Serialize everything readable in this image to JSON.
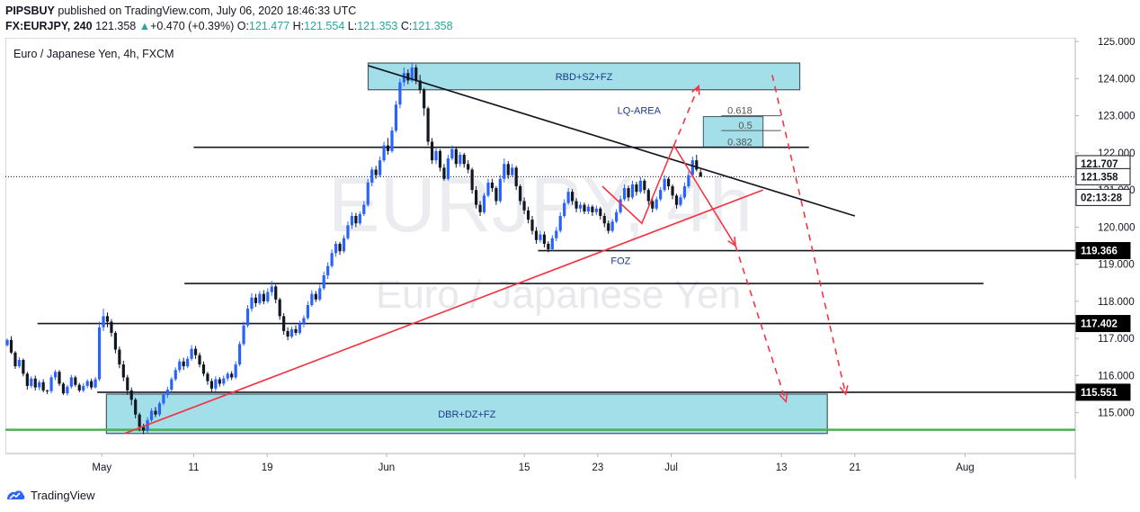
{
  "header": {
    "publisher": "PIPSBUY",
    "published_text": "published on TradingView.com, July 06, 2020 18:46:33 UTC",
    "symbol": "FX:EURJPY, 240",
    "last": "121.358",
    "change": "+0.470 (+0.39%)",
    "o_label": "O:",
    "o": "121.477",
    "h_label": "H:",
    "h": "121.554",
    "l_label": "L:",
    "l": "121.353",
    "c_label": "C:",
    "c": "121.358"
  },
  "footer": {
    "brand": "TradingView"
  },
  "chart_data": {
    "type": "candlestick",
    "title": "Euro / Japanese Yen, 4h, FXCM",
    "watermark_symbol": "EURJPY, 4h",
    "watermark_name": "Euro / Japanese Yen",
    "ylim": [
      113.9,
      125.1
    ],
    "y_ticks": [
      "115.000",
      "116.000",
      "117.000",
      "118.000",
      "119.000",
      "120.000",
      "121.000",
      "122.000",
      "123.000",
      "124.000",
      "125.000"
    ],
    "y_tick_values": [
      115,
      116,
      117,
      118,
      119,
      120,
      121,
      122,
      123,
      124,
      125
    ],
    "x_ticks": [
      {
        "label": "May",
        "x": -1
      },
      {
        "label": "11",
        "x": 9
      },
      {
        "label": "19",
        "x": 17
      },
      {
        "label": "Jun",
        "x": 30
      },
      {
        "label": "15",
        "x": 45
      },
      {
        "label": "23",
        "x": 53
      },
      {
        "label": "Jul",
        "x": 61
      },
      {
        "label": "13",
        "x": 73
      },
      {
        "label": "21",
        "x": 81
      },
      {
        "label": "Aug",
        "x": 93
      }
    ],
    "xlim": [
      -11.5,
      105
    ],
    "price_labels": [
      {
        "text": "121.707",
        "value": 121.707,
        "bg": "#ffffff",
        "fg": "#131722"
      },
      {
        "text": "121.358",
        "value": 121.358,
        "bg": "#ffffff",
        "fg": "#131722"
      },
      {
        "text": "02:13:28",
        "value": 120.8,
        "bg": "#ffffff",
        "fg": "#131722"
      },
      {
        "text": "119.366",
        "value": 119.366,
        "bg": "#000000",
        "fg": "#ffffff"
      },
      {
        "text": "117.402",
        "value": 117.402,
        "bg": "#000000",
        "fg": "#ffffff"
      },
      {
        "text": "115.551",
        "value": 115.551,
        "bg": "#000000",
        "fg": "#ffffff"
      }
    ],
    "current_price": 121.358,
    "zones": [
      {
        "label": "RBD+SZ+FZ",
        "x0": 28,
        "x1": 75,
        "y0": 123.7,
        "y1": 124.42
      },
      {
        "label": "DBR+DZ+FZ",
        "x0": -0.5,
        "x1": 78,
        "y0": 114.44,
        "y1": 115.5
      }
    ],
    "fib_box": {
      "x0": 64.5,
      "x1": 71,
      "y0": 122.15,
      "y1": 123.05,
      "levels": [
        {
          "label": "0.618",
          "value": 123.0
        },
        {
          "label": "0.5",
          "value": 122.6
        },
        {
          "label": "0.382",
          "value": 122.15
        }
      ]
    },
    "text_annotations": [
      {
        "text": "LQ-AREA",
        "x": 57.5,
        "y": 123.05
      },
      {
        "text": "FOZ",
        "x": 55.5,
        "y": 119.0
      }
    ],
    "h_lines": [
      {
        "value": 122.15,
        "x0": 9,
        "x1": 76,
        "color": "#131722"
      },
      {
        "value": 119.366,
        "x0": 46.5,
        "x1": 105,
        "color": "#131722"
      },
      {
        "value": 118.48,
        "x0": 8,
        "x1": 95,
        "color": "#131722"
      },
      {
        "value": 117.402,
        "x0": -8,
        "x1": 105,
        "color": "#131722"
      },
      {
        "value": 115.551,
        "x0": -1.5,
        "x1": 105,
        "color": "#131722"
      },
      {
        "value": 114.54,
        "x0": -11.5,
        "x1": 105,
        "color": "#4caf50"
      }
    ],
    "trend_lines": [
      {
        "x0": 28,
        "y0": 124.35,
        "x1": 81,
        "y1": 120.3,
        "color": "#131722"
      },
      {
        "x0": 1.5,
        "y0": 114.44,
        "x1": 71,
        "y1": 121.0,
        "color": "#f23645"
      }
    ],
    "paths": [
      {
        "points": [
          [
            53.5,
            121.1
          ],
          [
            57.8,
            120.1
          ],
          [
            61.3,
            122.2
          ],
          [
            64,
            121.1
          ],
          [
            68,
            119.5
          ]
        ],
        "dashed": false,
        "arrow": true
      },
      {
        "points": [
          [
            61.3,
            122.2
          ],
          [
            64,
            123.8
          ]
        ],
        "dashed": true,
        "arrow": true
      },
      {
        "points": [
          [
            68,
            119.5
          ],
          [
            73.5,
            115.3
          ]
        ],
        "dashed": true,
        "arrow": true
      },
      {
        "points": [
          [
            72,
            124.1
          ],
          [
            80,
            115.5
          ]
        ],
        "dashed": true,
        "arrow": true
      }
    ],
    "candles": [
      [
        116.82,
        116.96,
        117.0,
        116.78
      ],
      [
        116.96,
        116.62,
        117.06,
        116.58
      ],
      [
        116.62,
        116.25,
        116.66,
        116.18
      ],
      [
        116.25,
        116.42,
        116.5,
        116.2
      ],
      [
        116.42,
        116.05,
        116.46,
        115.98
      ],
      [
        116.05,
        115.72,
        116.1,
        115.62
      ],
      [
        115.72,
        115.92,
        115.98,
        115.66
      ],
      [
        115.92,
        115.68,
        116.0,
        115.6
      ],
      [
        115.68,
        115.82,
        115.88,
        115.6
      ],
      [
        115.82,
        115.6,
        115.9,
        115.55
      ],
      [
        115.6,
        115.58,
        115.62,
        115.5
      ],
      [
        115.58,
        115.95,
        116.02,
        115.52
      ],
      [
        115.95,
        116.1,
        116.15,
        115.88
      ],
      [
        116.1,
        115.78,
        116.15,
        115.72
      ],
      [
        115.78,
        115.52,
        115.82,
        115.48
      ],
      [
        115.52,
        115.7,
        115.75,
        115.46
      ],
      [
        115.7,
        115.95,
        116.02,
        115.65
      ],
      [
        115.95,
        115.75,
        116.0,
        115.7
      ],
      [
        115.75,
        115.6,
        115.8,
        115.55
      ],
      [
        115.6,
        115.72,
        115.8,
        115.55
      ],
      [
        115.72,
        115.85,
        115.9,
        115.66
      ],
      [
        115.85,
        115.68,
        115.92,
        115.62
      ],
      [
        115.68,
        115.9,
        115.96,
        115.65
      ],
      [
        115.9,
        117.3,
        117.45,
        115.85
      ],
      [
        117.3,
        117.6,
        117.8,
        117.2
      ],
      [
        117.6,
        117.45,
        117.7,
        117.3
      ],
      [
        117.45,
        117.15,
        117.52,
        117.05
      ],
      [
        117.15,
        116.7,
        117.2,
        116.6
      ],
      [
        116.7,
        116.3,
        116.78,
        116.2
      ],
      [
        116.3,
        115.95,
        116.4,
        115.85
      ],
      [
        115.95,
        115.6,
        116.02,
        115.48
      ],
      [
        115.6,
        115.35,
        115.68,
        115.2
      ],
      [
        115.35,
        114.95,
        115.4,
        114.85
      ],
      [
        114.95,
        114.62,
        115.0,
        114.5
      ],
      [
        114.62,
        114.52,
        114.7,
        114.42
      ],
      [
        114.52,
        114.8,
        114.88,
        114.46
      ],
      [
        114.8,
        115.05,
        115.12,
        114.75
      ],
      [
        115.05,
        114.95,
        115.15,
        114.88
      ],
      [
        114.95,
        115.25,
        115.3,
        114.9
      ],
      [
        115.25,
        115.48,
        115.55,
        115.2
      ],
      [
        115.48,
        115.62,
        115.7,
        115.4
      ],
      [
        115.62,
        115.9,
        115.96,
        115.55
      ],
      [
        115.9,
        116.15,
        116.22,
        115.85
      ],
      [
        116.15,
        116.38,
        116.45,
        116.08
      ],
      [
        116.38,
        116.25,
        116.48,
        116.15
      ],
      [
        116.25,
        116.45,
        116.52,
        116.2
      ],
      [
        116.45,
        116.72,
        116.82,
        116.4
      ],
      [
        116.72,
        116.55,
        116.8,
        116.45
      ],
      [
        116.55,
        116.3,
        116.62,
        116.22
      ],
      [
        116.3,
        116.05,
        116.38,
        115.98
      ],
      [
        116.05,
        115.85,
        116.1,
        115.75
      ],
      [
        115.85,
        115.65,
        115.92,
        115.55
      ],
      [
        115.65,
        115.9,
        115.98,
        115.58
      ],
      [
        115.9,
        115.78,
        115.96,
        115.7
      ],
      [
        115.78,
        115.92,
        116.0,
        115.72
      ],
      [
        115.92,
        116.05,
        116.1,
        115.85
      ],
      [
        116.05,
        115.95,
        116.12,
        115.88
      ],
      [
        115.95,
        116.3,
        116.38,
        115.9
      ],
      [
        116.3,
        116.85,
        116.92,
        116.25
      ],
      [
        116.85,
        117.35,
        117.45,
        116.8
      ],
      [
        117.35,
        117.8,
        117.9,
        117.3
      ],
      [
        117.8,
        118.1,
        118.22,
        117.72
      ],
      [
        118.1,
        117.95,
        118.2,
        117.85
      ],
      [
        117.95,
        118.2,
        118.28,
        117.9
      ],
      [
        118.2,
        118.0,
        118.3,
        117.92
      ],
      [
        118.0,
        118.25,
        118.35,
        117.95
      ],
      [
        118.25,
        118.4,
        118.55,
        118.15
      ],
      [
        118.4,
        118.05,
        118.45,
        117.95
      ],
      [
        118.05,
        117.6,
        118.1,
        117.5
      ],
      [
        117.6,
        117.2,
        117.68,
        117.1
      ],
      [
        117.2,
        117.05,
        117.3,
        116.95
      ],
      [
        117.05,
        117.25,
        117.32,
        117.0
      ],
      [
        117.25,
        117.15,
        117.35,
        117.08
      ],
      [
        117.15,
        117.4,
        117.48,
        117.1
      ],
      [
        117.4,
        117.55,
        117.62,
        117.3
      ],
      [
        117.55,
        117.9,
        118.0,
        117.5
      ],
      [
        117.9,
        118.2,
        118.3,
        117.85
      ],
      [
        118.2,
        118.05,
        118.28,
        117.98
      ],
      [
        118.05,
        118.35,
        118.45,
        118.0
      ],
      [
        118.35,
        118.7,
        118.8,
        118.3
      ],
      [
        118.7,
        118.95,
        119.05,
        118.6
      ],
      [
        118.95,
        119.3,
        119.4,
        118.9
      ],
      [
        119.3,
        119.55,
        119.62,
        119.2
      ],
      [
        119.55,
        119.35,
        119.6,
        119.25
      ],
      [
        119.35,
        119.7,
        119.78,
        119.3
      ],
      [
        119.7,
        120.05,
        120.15,
        119.65
      ],
      [
        120.05,
        120.3,
        120.4,
        119.95
      ],
      [
        120.3,
        120.1,
        120.38,
        120.0
      ],
      [
        120.1,
        120.35,
        120.42,
        120.05
      ],
      [
        120.35,
        120.6,
        120.7,
        120.3
      ],
      [
        120.6,
        121.2,
        121.3,
        120.55
      ],
      [
        121.2,
        121.55,
        121.62,
        121.1
      ],
      [
        121.55,
        121.4,
        121.65,
        121.3
      ],
      [
        121.4,
        121.8,
        121.9,
        121.35
      ],
      [
        121.8,
        122.2,
        122.3,
        121.75
      ],
      [
        122.2,
        122.05,
        122.4,
        121.95
      ],
      [
        122.05,
        122.6,
        122.7,
        122.0
      ],
      [
        122.6,
        123.3,
        123.4,
        122.55
      ],
      [
        123.3,
        123.9,
        124.0,
        123.2
      ],
      [
        123.9,
        124.15,
        124.3,
        123.8
      ],
      [
        124.15,
        123.95,
        124.25,
        123.85
      ],
      [
        123.95,
        124.3,
        124.43,
        123.9
      ],
      [
        124.3,
        123.95,
        124.38,
        123.85
      ],
      [
        123.95,
        123.7,
        124.1,
        123.6
      ],
      [
        123.7,
        123.2,
        123.75,
        123.0
      ],
      [
        123.2,
        122.3,
        123.25,
        122.2
      ],
      [
        122.3,
        121.8,
        122.4,
        121.7
      ],
      [
        121.8,
        122.05,
        122.12,
        121.7
      ],
      [
        122.05,
        121.6,
        122.1,
        121.5
      ],
      [
        121.6,
        121.3,
        121.7,
        121.25
      ],
      [
        121.3,
        121.85,
        121.95,
        121.25
      ],
      [
        121.85,
        122.1,
        122.2,
        121.8
      ],
      [
        122.1,
        121.7,
        122.15,
        121.6
      ],
      [
        121.7,
        121.95,
        122.02,
        121.62
      ],
      [
        121.95,
        121.7,
        122.0,
        121.6
      ],
      [
        121.7,
        121.55,
        121.8,
        121.45
      ],
      [
        121.55,
        121.0,
        121.6,
        120.9
      ],
      [
        121.0,
        120.6,
        121.1,
        120.5
      ],
      [
        120.6,
        120.4,
        120.7,
        120.3
      ],
      [
        120.4,
        120.85,
        120.92,
        120.35
      ],
      [
        120.85,
        121.2,
        121.3,
        120.8
      ],
      [
        121.2,
        121.05,
        121.3,
        120.95
      ],
      [
        121.05,
        120.7,
        121.1,
        120.6
      ],
      [
        120.7,
        121.3,
        121.4,
        120.65
      ],
      [
        121.3,
        121.7,
        121.85,
        121.2
      ],
      [
        121.7,
        121.4,
        121.78,
        121.3
      ],
      [
        121.4,
        121.6,
        121.7,
        121.35
      ],
      [
        121.6,
        121.1,
        121.65,
        121.0
      ],
      [
        121.1,
        120.7,
        121.15,
        120.6
      ],
      [
        120.7,
        120.45,
        120.8,
        120.35
      ],
      [
        120.45,
        120.2,
        120.55,
        120.1
      ],
      [
        120.2,
        119.9,
        120.3,
        119.8
      ],
      [
        119.9,
        119.65,
        120.0,
        119.55
      ],
      [
        119.65,
        119.8,
        119.9,
        119.58
      ],
      [
        119.8,
        119.55,
        119.88,
        119.45
      ],
      [
        119.55,
        119.4,
        119.62,
        119.32
      ],
      [
        119.4,
        119.7,
        119.78,
        119.35
      ],
      [
        119.7,
        119.9,
        120.0,
        119.62
      ],
      [
        119.9,
        120.3,
        120.4,
        119.85
      ],
      [
        120.3,
        120.65,
        120.75,
        120.25
      ],
      [
        120.65,
        120.95,
        121.05,
        120.6
      ],
      [
        120.95,
        120.7,
        121.02,
        120.6
      ],
      [
        120.7,
        120.5,
        120.78,
        120.4
      ],
      [
        120.5,
        120.6,
        120.68,
        120.4
      ],
      [
        120.6,
        120.42,
        120.66,
        120.35
      ],
      [
        120.42,
        120.55,
        120.62,
        120.35
      ],
      [
        120.55,
        120.4,
        120.6,
        120.3
      ],
      [
        120.4,
        120.5,
        120.58,
        120.32
      ],
      [
        120.5,
        120.3,
        120.55,
        120.2
      ],
      [
        120.3,
        120.1,
        120.38,
        120.0
      ],
      [
        120.1,
        119.9,
        120.18,
        119.82
      ],
      [
        119.9,
        120.15,
        120.22,
        119.85
      ],
      [
        120.15,
        120.4,
        120.48,
        120.1
      ],
      [
        120.4,
        120.75,
        120.85,
        120.35
      ],
      [
        120.75,
        121.05,
        121.15,
        120.7
      ],
      [
        121.05,
        120.8,
        121.12,
        120.7
      ],
      [
        120.8,
        121.15,
        121.25,
        120.75
      ],
      [
        121.15,
        120.95,
        121.22,
        120.85
      ],
      [
        120.95,
        121.25,
        121.35,
        120.9
      ],
      [
        121.25,
        121.0,
        121.3,
        120.9
      ],
      [
        121.0,
        120.7,
        121.05,
        120.6
      ],
      [
        120.7,
        120.5,
        120.78,
        120.4
      ],
      [
        120.5,
        120.75,
        120.82,
        120.45
      ],
      [
        120.75,
        121.0,
        121.08,
        120.7
      ],
      [
        121.0,
        121.3,
        121.4,
        120.95
      ],
      [
        121.3,
        121.1,
        121.35,
        121.0
      ],
      [
        121.1,
        120.85,
        121.15,
        120.75
      ],
      [
        120.85,
        120.6,
        120.9,
        120.5
      ],
      [
        120.6,
        120.8,
        120.88,
        120.55
      ],
      [
        120.8,
        121.1,
        121.2,
        120.75
      ],
      [
        121.1,
        121.4,
        121.5,
        121.05
      ],
      [
        121.4,
        121.8,
        121.9,
        121.35
      ],
      [
        121.8,
        121.55,
        121.95,
        121.5
      ],
      [
        121.477,
        121.358,
        121.554,
        121.353
      ]
    ]
  }
}
